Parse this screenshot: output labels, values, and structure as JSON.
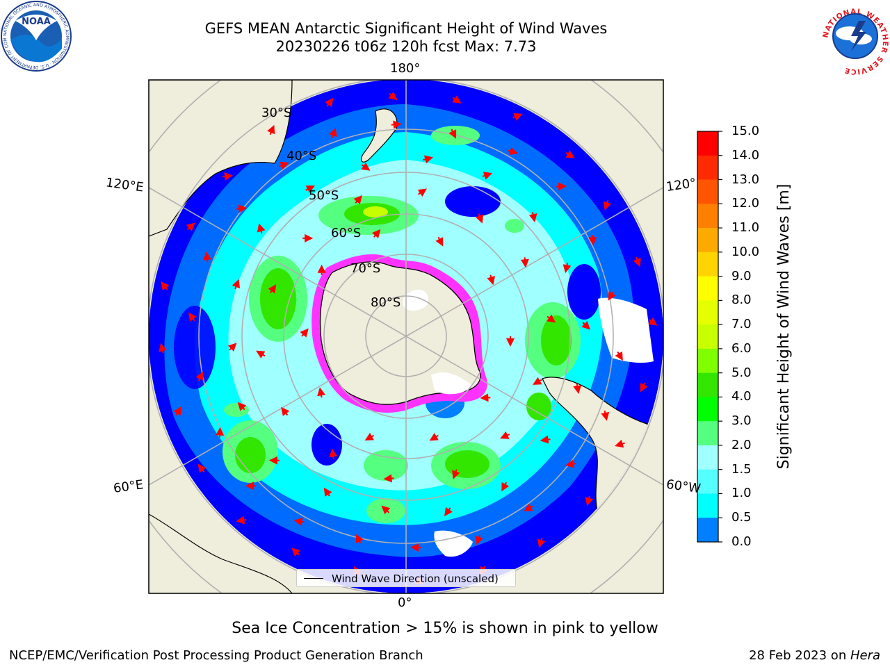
{
  "header": {
    "title_line1": "GEFS MEAN Antarctic Significant Height of Wind Waves",
    "title_line2": "20230226 t06z 120h fcst   Max: 7.73"
  },
  "logos": {
    "noaa_text": "NOAA",
    "noaa_ring_text": "NATIONAL OCEANIC AND ATMOSPHERIC ADMINISTRATION · U.S. DEPARTMENT OF COMMERCE",
    "nws_ring_text": "NATIONAL WEATHER SERVICE"
  },
  "map": {
    "longitude_labels": {
      "top": "180°",
      "bottom": "0°",
      "upper_left": "120°E",
      "lower_left": "60°E",
      "upper_right": "120°",
      "lower_right": "60°W"
    },
    "latitude_labels": [
      "30°S",
      "40°S",
      "50°S",
      "60°S",
      "70°S",
      "80°S"
    ],
    "legend_label": "Wind Wave Direction (unscaled)"
  },
  "colorbar": {
    "title": "Significant Height of Wind Waves [m]",
    "ticks": [
      "15.0",
      "14.0",
      "13.0",
      "12.0",
      "11.0",
      "10.0",
      "9.0",
      "8.0",
      "7.0",
      "6.0",
      "5.0",
      "4.0",
      "3.0",
      "2.0",
      "1.5",
      "1.0",
      "0.5",
      "0.0"
    ],
    "colors": [
      "#ff0000",
      "#ff2a00",
      "#ff5500",
      "#ff7f00",
      "#ffaa00",
      "#ffd400",
      "#ffff00",
      "#e5ff00",
      "#c8ff00",
      "#7fff00",
      "#32e600",
      "#00ff00",
      "#55ff7f",
      "#a0ffff",
      "#55ffff",
      "#00ffff",
      "#007fff",
      "#0000ff"
    ]
  },
  "footer": {
    "caption": "Sea Ice Concentration > 15% is shown in pink to yellow",
    "left": "NCEP/EMC/Verification Post Processing Product Generation Branch",
    "right_prefix": "28 Feb 2023 on ",
    "right_machine": "Hera"
  },
  "colors": {
    "land": "#efeddb",
    "ocean_low": "#0000ff",
    "ocean_mid": "#00ffff",
    "ocean_light": "#a0ffff",
    "wave_green": "#55ff7f",
    "wave_strong": "#32e600",
    "arrow": "#ff0000",
    "sea_ice": "#ff33ff"
  }
}
